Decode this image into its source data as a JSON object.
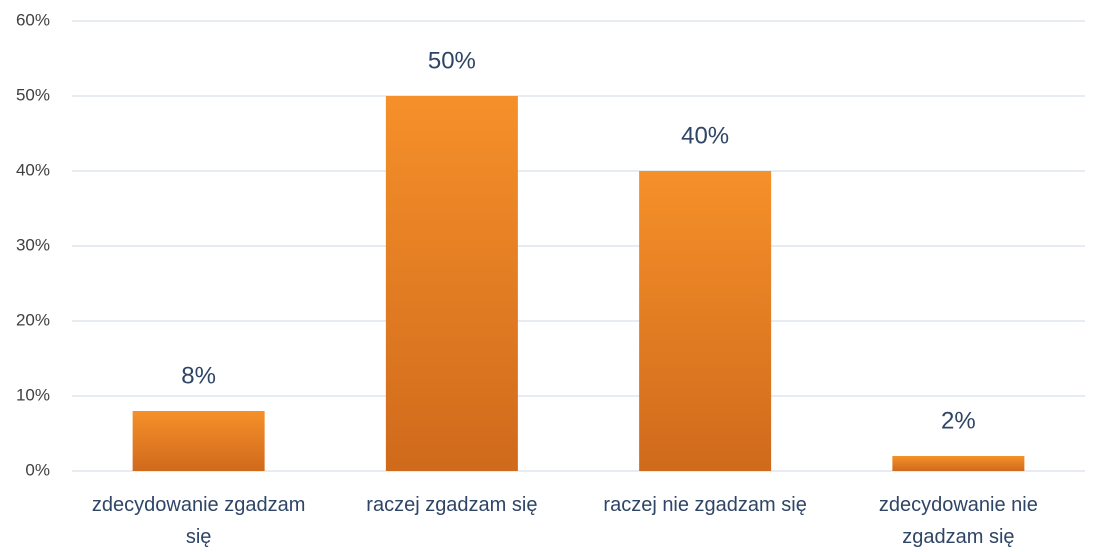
{
  "chart_data": {
    "type": "bar",
    "categories": [
      "zdecydowanie zgadzam się",
      "raczej zgadzam się",
      "raczej nie zgadzam się",
      "zdecydowanie nie zgadzam się"
    ],
    "values": [
      8,
      50,
      40,
      2
    ],
    "value_labels": [
      "8%",
      "50%",
      "40%",
      "2%"
    ],
    "color": "#f5902a",
    "ylim": [
      0,
      60
    ],
    "yticks": [
      {
        "value": 0,
        "label": "0%"
      },
      {
        "value": 10,
        "label": "10%"
      },
      {
        "value": 20,
        "label": "20%"
      },
      {
        "value": 30,
        "label": "30%"
      },
      {
        "value": 40,
        "label": "40%"
      },
      {
        "value": 50,
        "label": "50%"
      },
      {
        "value": 60,
        "label": "60%"
      }
    ],
    "grid": true
  }
}
